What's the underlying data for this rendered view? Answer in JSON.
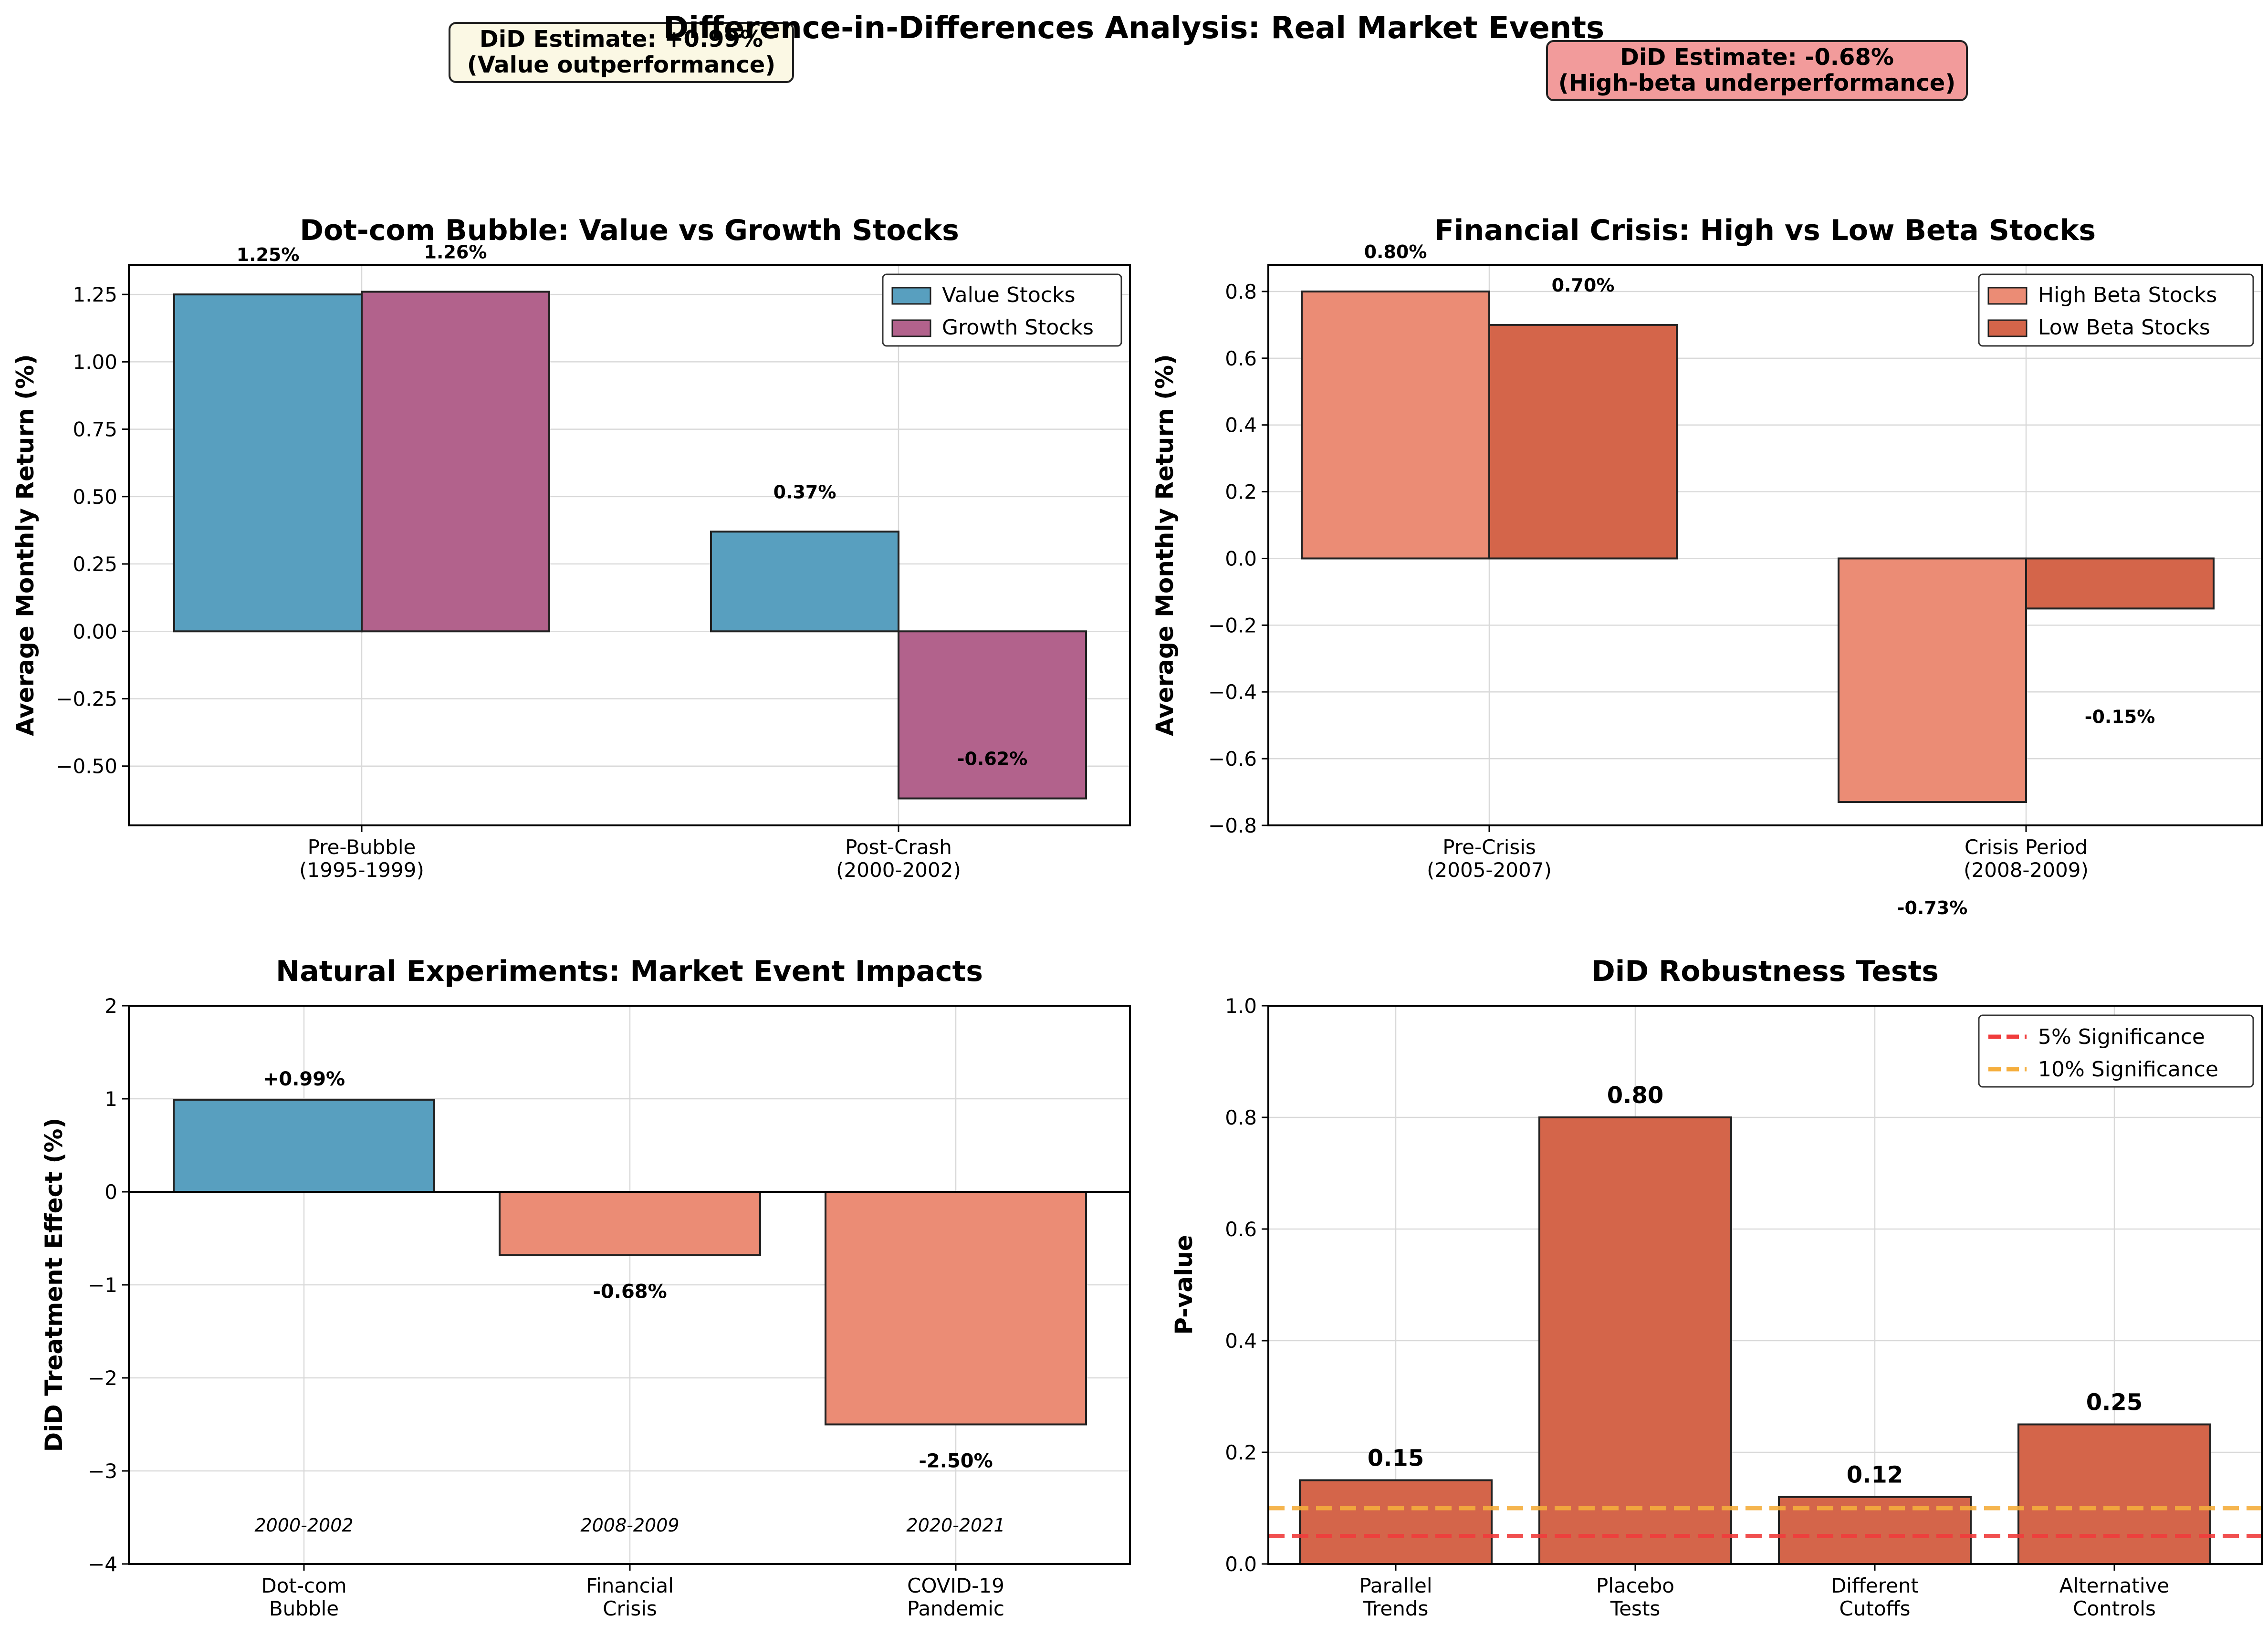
{
  "figure": {
    "title": "Difference-in-Differences Analysis: Real Market Events",
    "annotations": [
      {
        "text_lines": [
          "DiD Estimate: +0.99%",
          "(Value outperformance)"
        ],
        "bg": "#fbf8e4"
      },
      {
        "text_lines": [
          "DiD Estimate: -0.68%",
          "(High-beta underperformance)"
        ],
        "bg": "#f29b9b"
      }
    ]
  },
  "chart_data": [
    {
      "id": "dotcom",
      "type": "bar",
      "title": "Dot-com Bubble: Value vs Growth Stocks",
      "xlabel": "",
      "ylabel": "Average Monthly Return (%)",
      "categories": [
        "Pre-Bubble\n(1995-1999)",
        "Post-Crash\n(2000-2002)"
      ],
      "series": [
        {
          "name": "Value Stocks",
          "color": "#589fbf",
          "values": [
            1.25,
            0.37
          ]
        },
        {
          "name": "Growth Stocks",
          "color": "#b2628c",
          "values": [
            1.26,
            -0.62
          ]
        }
      ],
      "value_labels": [
        [
          "1.25%",
          "0.37%"
        ],
        [
          "1.26%",
          "-0.62%"
        ]
      ],
      "ylim": [
        -0.72,
        1.36
      ],
      "yticks": [
        -0.5,
        -0.25,
        0.0,
        0.25,
        0.5,
        0.75,
        1.0,
        1.25
      ],
      "ytick_labels": [
        "−0.50",
        "−0.25",
        "0.00",
        "0.25",
        "0.50",
        "0.75",
        "1.00",
        "1.25"
      ],
      "legend": "top-right",
      "grid": true
    },
    {
      "id": "crisis",
      "type": "bar",
      "title": "Financial Crisis: High vs Low Beta Stocks",
      "xlabel": "",
      "ylabel": "Average Monthly Return (%)",
      "categories": [
        "Pre-Crisis\n(2005-2007)",
        "Crisis Period\n(2008-2009)"
      ],
      "series": [
        {
          "name": "High Beta Stocks",
          "color": "#eb8c75",
          "values": [
            0.8,
            -0.73
          ]
        },
        {
          "name": "Low Beta Stocks",
          "color": "#d4654a",
          "values": [
            0.7,
            -0.15
          ]
        }
      ],
      "value_labels": [
        [
          "0.80%",
          "-0.73%"
        ],
        [
          "0.70%",
          "-0.15%"
        ]
      ],
      "ylim": [
        -0.8,
        0.88
      ],
      "yticks": [
        -0.8,
        -0.6,
        -0.4,
        -0.2,
        0.0,
        0.2,
        0.4,
        0.6,
        0.8
      ],
      "ytick_labels": [
        "−0.8",
        "−0.6",
        "−0.4",
        "−0.2",
        "0.0",
        "0.2",
        "0.4",
        "0.6",
        "0.8"
      ],
      "legend": "top-right",
      "grid": true
    },
    {
      "id": "natural",
      "type": "bar",
      "title": "Natural Experiments: Market Event Impacts",
      "xlabel": "",
      "ylabel": "DiD Treatment Effect (%)",
      "categories": [
        "Dot-com\nBubble",
        "Financial\nCrisis",
        "COVID-19\nPandemic"
      ],
      "values": [
        0.99,
        -0.68,
        -2.5
      ],
      "colors": [
        "#589fbf",
        "#eb8c75",
        "#eb8c75"
      ],
      "value_labels": [
        "+0.99%",
        "-0.68%",
        "-2.50%"
      ],
      "periods": [
        "2000-2002",
        "2008-2009",
        "2020-2021"
      ],
      "ylim": [
        -4,
        2
      ],
      "yticks": [
        -4,
        -3,
        -2,
        -1,
        0,
        1,
        2
      ],
      "ytick_labels": [
        "−4",
        "−3",
        "−2",
        "−1",
        "0",
        "1",
        "2"
      ],
      "grid": true
    },
    {
      "id": "robust",
      "type": "bar",
      "title": "DiD Robustness Tests",
      "xlabel": "",
      "ylabel": "P-value",
      "categories": [
        "Parallel\nTrends",
        "Placebo\nTests",
        "Different\nCutoffs",
        "Alternative\nControls"
      ],
      "values": [
        0.15,
        0.8,
        0.12,
        0.25
      ],
      "color": "#d4654a",
      "value_labels": [
        "0.15",
        "0.80",
        "0.12",
        "0.25"
      ],
      "hlines": [
        {
          "name": "5% Significance",
          "y": 0.05,
          "color": "#f03c3c"
        },
        {
          "name": "10% Significance",
          "y": 0.1,
          "color": "#f5ae3d"
        }
      ],
      "ylim": [
        0,
        1
      ],
      "yticks": [
        0.0,
        0.2,
        0.4,
        0.6,
        0.8,
        1.0
      ],
      "ytick_labels": [
        "0.0",
        "0.2",
        "0.4",
        "0.6",
        "0.8",
        "1.0"
      ],
      "legend": "top-right",
      "grid": true
    }
  ]
}
